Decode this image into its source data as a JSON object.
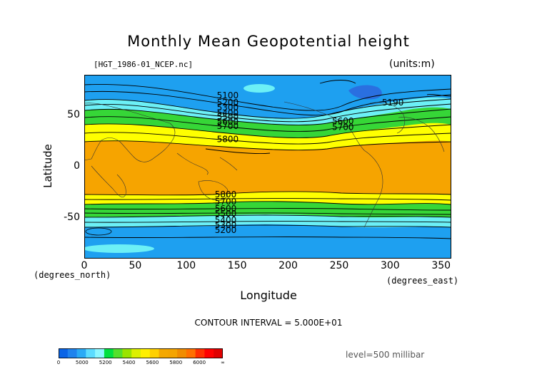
{
  "title": "Monthly Mean Geopotential height",
  "file_label": "[HGT_1986-01_NCEP.nc]",
  "units_label": "(units:m)",
  "contour_interval": "CONTOUR INTERVAL = 5.000E+01",
  "level_label": "level=500 millibar",
  "colors": {
    "c_lt_4900": "#2a6fe0",
    "c_4900_5200": "#1ea0f0",
    "c_5200_5400": "#6cf0f6",
    "c_5400_5600": "#36d637",
    "c_5600_5700": "#ffff00",
    "c_5700_5800": "#f6a400",
    "c_ge_6000": "#f00000"
  },
  "chart_data": {
    "type": "heatmap",
    "title": "Monthly Mean Geopotential height",
    "xlabel": "Longitude",
    "ylabel": "Latitude",
    "x_unit_note": "(degrees_east)",
    "y_unit_note": "(degrees_north)",
    "xlim": [
      0,
      360
    ],
    "ylim": [
      -90,
      90
    ],
    "x_ticks": [
      0,
      50,
      100,
      150,
      200,
      250,
      300,
      350
    ],
    "y_ticks": [
      50,
      0,
      -50
    ],
    "contour_labels": [
      {
        "text": "5100",
        "lon": 130,
        "lat": 67
      },
      {
        "text": "5200",
        "lon": 130,
        "lat": 60
      },
      {
        "text": "5300",
        "lon": 130,
        "lat": 55
      },
      {
        "text": "5400",
        "lon": 130,
        "lat": 50
      },
      {
        "text": "5500",
        "lon": 130,
        "lat": 46
      },
      {
        "text": "5600",
        "lon": 130,
        "lat": 41
      },
      {
        "text": "5700",
        "lon": 130,
        "lat": 37
      },
      {
        "text": "5800",
        "lon": 130,
        "lat": 24
      },
      {
        "text": "5600",
        "lon": 243,
        "lat": 42
      },
      {
        "text": "5700",
        "lon": 243,
        "lat": 36
      },
      {
        "text": "5190",
        "lon": 292,
        "lat": 60
      },
      {
        "text": "5800",
        "lon": 128,
        "lat": -30
      },
      {
        "text": "5700",
        "lon": 128,
        "lat": -37
      },
      {
        "text": "5600",
        "lon": 128,
        "lat": -44
      },
      {
        "text": "5500",
        "lon": 128,
        "lat": -49
      },
      {
        "text": "5400",
        "lon": 128,
        "lat": -55
      },
      {
        "text": "5300",
        "lon": 128,
        "lat": -60
      },
      {
        "text": "5200",
        "lon": 128,
        "lat": -65
      }
    ],
    "colorbar": {
      "ticks": [
        "0",
        "5000",
        "5200",
        "5400",
        "5600",
        "5800",
        "6000",
        "∞"
      ],
      "colors": [
        "#0a64e6",
        "#1f83ee",
        "#2aaaf6",
        "#5cdcff",
        "#8ef7ff",
        "#00e040",
        "#54e02c",
        "#9ae400",
        "#dcf000",
        "#fff000",
        "#ffd000",
        "#f4a800",
        "#f4a400",
        "#f08c00",
        "#ff7000",
        "#ff3000",
        "#ff0000",
        "#e00000"
      ]
    },
    "level": "level=500 millibar"
  }
}
